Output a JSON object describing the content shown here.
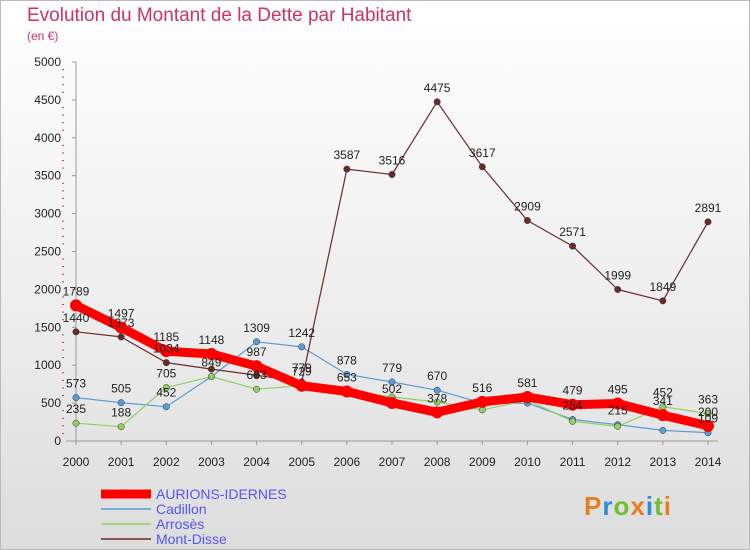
{
  "title": "Evolution du Montant de la Dette par Habitant",
  "subtitle": "(en €)",
  "logo": {
    "text": "Proxiti",
    "colors": [
      "#e87e1e",
      "#2a8fd3",
      "#6fbf2e",
      "#e87e1e",
      "#2a8fd3",
      "#6fbf2e",
      "#e87e1e"
    ]
  },
  "chart_data": {
    "type": "line",
    "title": "Evolution du Montant de la Dette par Habitant",
    "ylabel": "(en €)",
    "xlabel": "",
    "ylim": [
      0,
      5000
    ],
    "y_ticks": [
      0,
      500,
      1000,
      1500,
      2000,
      2500,
      3000,
      3500,
      4000,
      4500,
      5000
    ],
    "categories": [
      "2000",
      "2001",
      "2002",
      "2003",
      "2004",
      "2005",
      "2006",
      "2007",
      "2008",
      "2009",
      "2010",
      "2011",
      "2012",
      "2013",
      "2014"
    ],
    "grid": false,
    "legend_position": "bottom-left",
    "series": [
      {
        "name": "AURIONS-IDERNES",
        "color": "#ff0000",
        "width": 9,
        "values": [
          1789,
          1497,
          1185,
          1148,
          987,
          729,
          653,
          502,
          378,
          516,
          581,
          479,
          495,
          341,
          200
        ]
      },
      {
        "name": "Cadillon",
        "color": "#5b9bd5",
        "width": 1.2,
        "values": [
          573,
          505,
          452,
          849,
          1309,
          1242,
          878,
          779,
          670,
          500,
          500,
          284,
          215,
          140,
          109
        ]
      },
      {
        "name": "Arrosès",
        "color": "#90d060",
        "width": 1.2,
        "values": [
          235,
          188,
          705,
          849,
          683,
          729,
          667,
          580,
          514,
          410,
          540,
          260,
          193,
          452,
          363
        ]
      },
      {
        "name": "Mont-Disse",
        "color": "#6b2a2a",
        "width": 1.2,
        "values": [
          1440,
          1373,
          1034,
          948,
          868,
          779,
          3587,
          3516,
          4475,
          3617,
          2909,
          2571,
          1999,
          1849,
          2891
        ]
      }
    ],
    "data_labels": [
      {
        "series": 0,
        "index": 0,
        "text": "1789"
      },
      {
        "series": 0,
        "index": 1,
        "text": "1497"
      },
      {
        "series": 0,
        "index": 2,
        "text": "1185"
      },
      {
        "series": 0,
        "index": 3,
        "text": "1148"
      },
      {
        "series": 0,
        "index": 4,
        "text": "987"
      },
      {
        "series": 0,
        "index": 5,
        "text": "729"
      },
      {
        "series": 0,
        "index": 6,
        "text": "653"
      },
      {
        "series": 0,
        "index": 7,
        "text": "502"
      },
      {
        "series": 0,
        "index": 8,
        "text": "378"
      },
      {
        "series": 0,
        "index": 9,
        "text": "516"
      },
      {
        "series": 0,
        "index": 10,
        "text": "581"
      },
      {
        "series": 0,
        "index": 11,
        "text": "479"
      },
      {
        "series": 0,
        "index": 12,
        "text": "495"
      },
      {
        "series": 0,
        "index": 13,
        "text": "341"
      },
      {
        "series": 0,
        "index": 14,
        "text": "200"
      },
      {
        "series": 1,
        "index": 0,
        "text": "573"
      },
      {
        "series": 1,
        "index": 1,
        "text": "505"
      },
      {
        "series": 1,
        "index": 2,
        "text": "452"
      },
      {
        "series": 1,
        "index": 4,
        "text": "1309"
      },
      {
        "series": 1,
        "index": 5,
        "text": "1242"
      },
      {
        "series": 1,
        "index": 6,
        "text": "878"
      },
      {
        "series": 1,
        "index": 7,
        "text": "779"
      },
      {
        "series": 1,
        "index": 8,
        "text": "670"
      },
      {
        "series": 1,
        "index": 11,
        "text": "284"
      },
      {
        "series": 1,
        "index": 12,
        "text": "215"
      },
      {
        "series": 1,
        "index": 14,
        "text": "109"
      },
      {
        "series": 2,
        "index": 0,
        "text": "235"
      },
      {
        "series": 2,
        "index": 1,
        "text": "188"
      },
      {
        "series": 2,
        "index": 2,
        "text": "705"
      },
      {
        "series": 2,
        "index": 3,
        "text": "849"
      },
      {
        "series": 2,
        "index": 4,
        "text": "683"
      },
      {
        "series": 2,
        "index": 13,
        "text": "452"
      },
      {
        "series": 2,
        "index": 14,
        "text": "363"
      },
      {
        "series": 3,
        "index": 0,
        "text": "1440"
      },
      {
        "series": 3,
        "index": 1,
        "text": "1373"
      },
      {
        "series": 3,
        "index": 2,
        "text": "1034"
      },
      {
        "series": 3,
        "index": 5,
        "text": "779"
      },
      {
        "series": 3,
        "index": 6,
        "text": "3587"
      },
      {
        "series": 3,
        "index": 7,
        "text": "3516"
      },
      {
        "series": 3,
        "index": 8,
        "text": "4475"
      },
      {
        "series": 3,
        "index": 9,
        "text": "3617"
      },
      {
        "series": 3,
        "index": 10,
        "text": "2909"
      },
      {
        "series": 3,
        "index": 11,
        "text": "2571"
      },
      {
        "series": 3,
        "index": 12,
        "text": "1999"
      },
      {
        "series": 3,
        "index": 13,
        "text": "1849"
      },
      {
        "series": 3,
        "index": 14,
        "text": "2891"
      }
    ]
  }
}
